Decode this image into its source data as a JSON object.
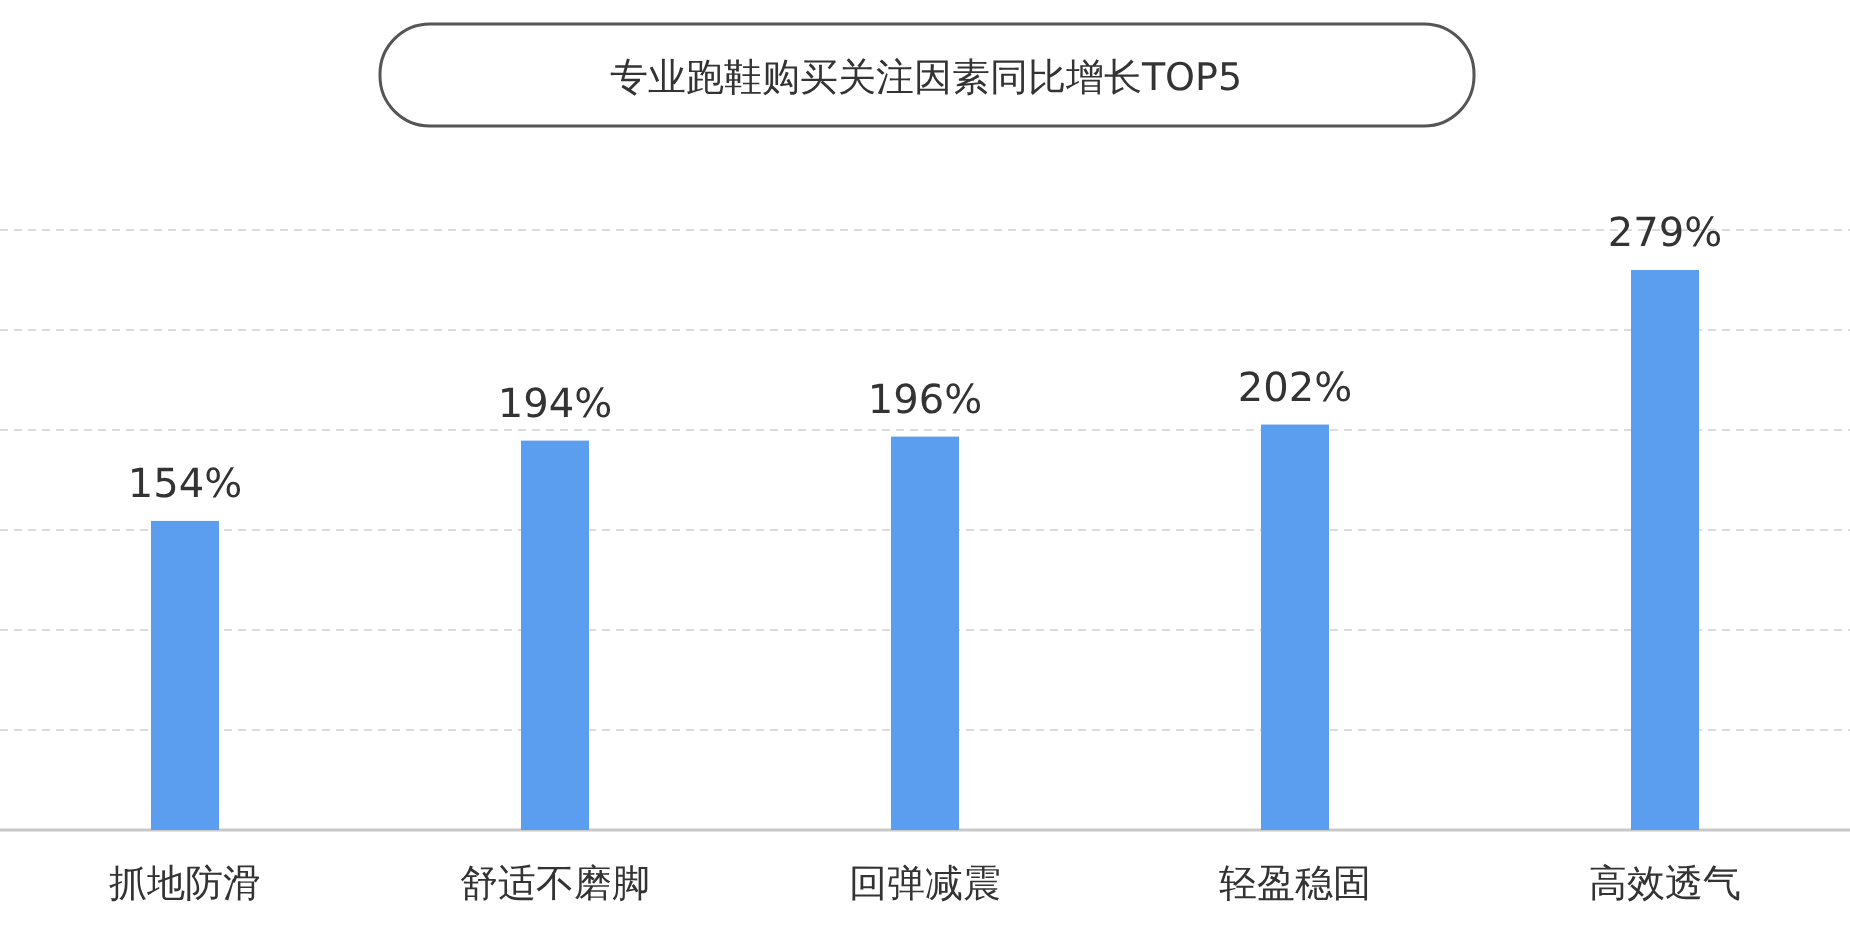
{
  "chart_data": {
    "type": "bar",
    "title": "专业跑鞋购买关注因素同比增长TOP5",
    "categories": [
      "抓地防滑",
      "舒适不磨脚",
      "回弹减震",
      "轻盈稳固",
      "高效透气"
    ],
    "values": [
      154,
      194,
      196,
      202,
      279
    ],
    "value_labels": [
      "154%",
      "194%",
      "196%",
      "202%",
      "279%"
    ],
    "color": "#5b9ef0",
    "grid": "y",
    "tick_labels": "x"
  }
}
